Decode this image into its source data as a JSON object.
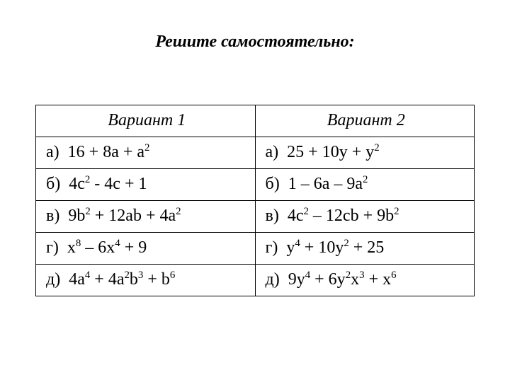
{
  "title": "Решите самостоятельно:",
  "background_color": "#ffffff",
  "text_color": "#000000",
  "border_color": "#000000",
  "font_family": "Times New Roman",
  "title_fontsize": 24,
  "cell_fontsize": 24,
  "columns": [
    {
      "header": "Вариант 1"
    },
    {
      "header": "Вариант 2"
    }
  ],
  "rows": [
    {
      "col1": {
        "label": "а)",
        "expr_html": "16 + 8a + a<sup>2</sup>"
      },
      "col2": {
        "label": "а)",
        "expr_html": "25 + 10y + y<sup>2</sup>"
      }
    },
    {
      "col1": {
        "label": "б)",
        "expr_html": "4c<sup>2</sup> - 4c + 1"
      },
      "col2": {
        "label": "б)",
        "expr_html": "1 – 6a – 9a<sup>2</sup>"
      }
    },
    {
      "col1": {
        "label": "в)",
        "expr_html": "9b<sup>2</sup> + 12ab + 4a<sup>2</sup>"
      },
      "col2": {
        "label": "в)",
        "expr_html": "4c<sup>2</sup> – 12cb + 9b<sup>2</sup>"
      }
    },
    {
      "col1": {
        "label": "г)",
        "expr_html": "x<sup>8</sup> – 6x<sup>4</sup> + 9"
      },
      "col2": {
        "label": "г)",
        "expr_html": "y<sup>4</sup> + 10y<sup>2</sup> + 25"
      }
    },
    {
      "col1": {
        "label": "д)",
        "expr_html": "4a<sup>4</sup> + 4a<sup>2</sup>b<sup>3</sup> + b<sup>6</sup>"
      },
      "col2": {
        "label": "д)",
        "expr_html": "9y<sup>4</sup> + 6y<sup>2</sup>x<sup>3</sup> + x<sup>6</sup>"
      }
    }
  ]
}
